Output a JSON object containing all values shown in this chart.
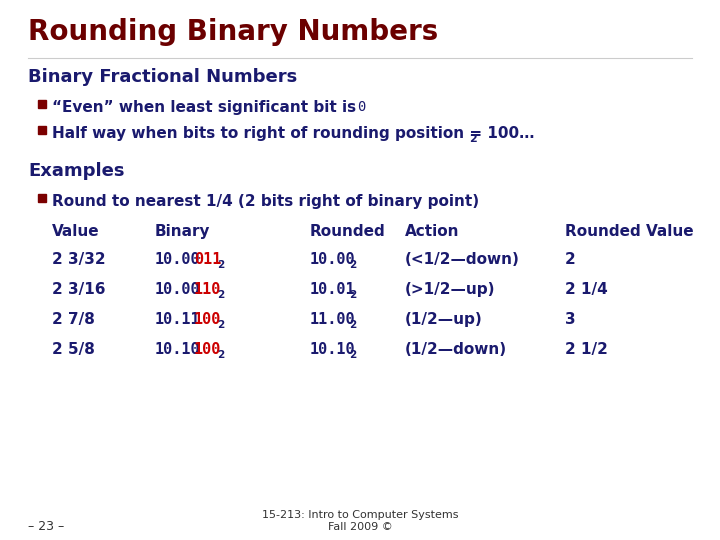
{
  "title": "Rounding Binary Numbers",
  "title_color": "#6B0000",
  "bg_color": "#FFFFFF",
  "section1_header": "Binary Fractional Numbers",
  "section2_header": "Examples",
  "bullet_color": "#7B0000",
  "body_color": "#1a1a6e",
  "highlight_color": "#CC0000",
  "rows": [
    {
      "value": "2 3/32",
      "binary_prefix": "10.00",
      "binary_highlight": "011",
      "rounded": "10.00",
      "action": "(<1/2—down)",
      "rounded_value": "2"
    },
    {
      "value": "2 3/16",
      "binary_prefix": "10.00",
      "binary_highlight": "110",
      "rounded": "10.01",
      "action": "(>1/2—up)",
      "rounded_value": "2 1/4"
    },
    {
      "value": "2 7/8",
      "binary_prefix": "10.11",
      "binary_highlight": "100",
      "rounded": "11.00",
      "action": "(1/2—up)",
      "rounded_value": "3"
    },
    {
      "value": "2 5/8",
      "binary_prefix": "10.10",
      "binary_highlight": "100",
      "rounded": "10.10",
      "action": "(1/2—down)",
      "rounded_value": "2 1/2"
    }
  ],
  "footer_left": "– 23 –",
  "footer_center": "15-213: Intro to Computer Systems\nFall 2009 ©"
}
